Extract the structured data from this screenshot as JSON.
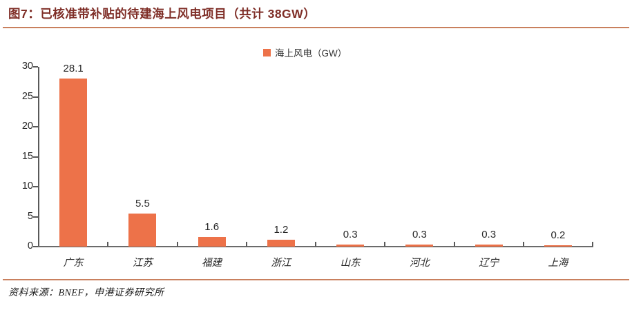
{
  "figure": {
    "title": "图7：已核准带补贴的待建海上风电项目（共计 38GW）",
    "source": "资料来源：BNEF，申港证券研究所"
  },
  "legend": {
    "label": "海上风电（GW）"
  },
  "colors": {
    "bar": "#ED7249",
    "title": "#7F2E27",
    "rule": "#C9805E",
    "axis": "#595959",
    "text": "#262626"
  },
  "chart_data": {
    "type": "bar",
    "title": "已核准带补贴的待建海上风电项目（共计 38GW）",
    "categories": [
      "广东",
      "江苏",
      "福建",
      "浙江",
      "山东",
      "河北",
      "辽宁",
      "上海"
    ],
    "series": [
      {
        "name": "海上风电（GW）",
        "values": [
          28.1,
          5.5,
          1.6,
          1.2,
          0.3,
          0.3,
          0.3,
          0.2
        ]
      }
    ],
    "data_labels": [
      "28.1",
      "5.5",
      "1.6",
      "1.2",
      "0.3",
      "0.3",
      "0.3",
      "0.2"
    ],
    "xlabel": "",
    "ylabel": "",
    "ylim": [
      0,
      30
    ],
    "y_ticks": [
      0,
      5,
      10,
      15,
      20,
      25,
      30
    ],
    "grid": false,
    "legend_position": "top-center"
  }
}
